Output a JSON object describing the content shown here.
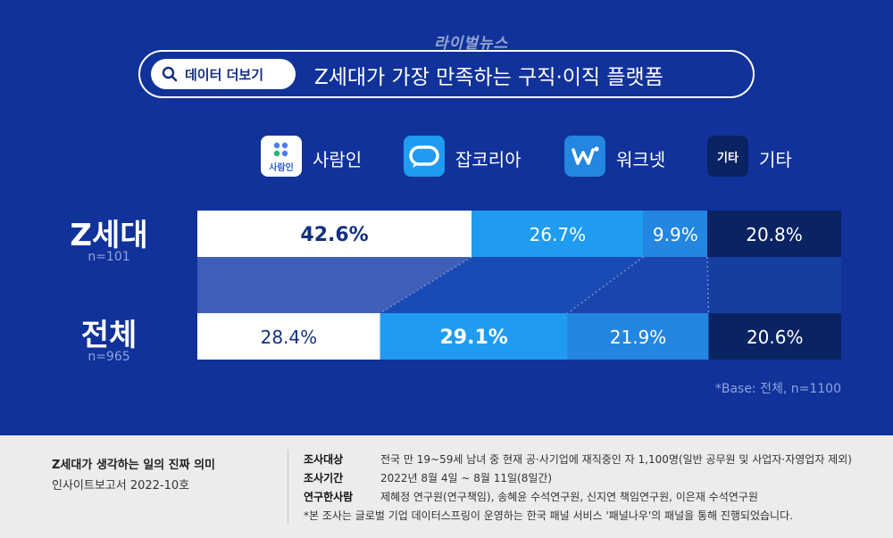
{
  "watermark": "라이벌뉴스",
  "header": {
    "badge_label": "데이터 더보기",
    "title": "Z세대가 가장 만족하는 구직·이직 플랫폼"
  },
  "legend": [
    {
      "label": "사람인",
      "icon_text": "사람인",
      "icon": "saramin-logo-icon",
      "color": "#ffffff"
    },
    {
      "label": "잡코리아",
      "icon": "jobkorea-logo-icon",
      "color": "#1f9bf0"
    },
    {
      "label": "워크넷",
      "icon": "worknet-logo-icon",
      "color": "#2386e0"
    },
    {
      "label": "기타",
      "icon_text": "기타",
      "icon": "other-icon",
      "color": "#0a2363"
    }
  ],
  "rows": [
    {
      "title": "Z세대",
      "n": "n=101"
    },
    {
      "title": "전체",
      "n": "n=965"
    }
  ],
  "chart_data": {
    "type": "bar",
    "orientation": "horizontal-stacked-100",
    "categories": [
      "Z세대",
      "전체"
    ],
    "series": [
      {
        "name": "사람인",
        "values": [
          42.6,
          28.4
        ],
        "labels": [
          "42.6%",
          "28.4%"
        ],
        "color": "#ffffff",
        "text_color": "#13307f"
      },
      {
        "name": "잡코리아",
        "values": [
          26.7,
          29.1
        ],
        "labels": [
          "26.7%",
          "29.1%"
        ],
        "color": "#1f9bf0",
        "text_color": "#ffffff"
      },
      {
        "name": "워크넷",
        "values": [
          9.9,
          21.9
        ],
        "labels": [
          "9.9%",
          "21.9%"
        ],
        "color": "#2386e0",
        "text_color": "#ffffff"
      },
      {
        "name": "기타",
        "values": [
          20.8,
          20.6
        ],
        "labels": [
          "20.8%",
          "20.6%"
        ],
        "color": "#0a2363",
        "text_color": "#ffffff"
      }
    ],
    "bold_labels": [
      [
        true,
        false,
        false,
        false
      ],
      [
        false,
        true,
        false,
        false
      ]
    ],
    "xlim": [
      0,
      100
    ]
  },
  "base_note": "*Base: 전체, n=1100",
  "footer": {
    "report_title": "Z세대가 생각하는 일의 진짜 의미",
    "report_sub": "인사이트보고서 2022-10호",
    "info": [
      {
        "key": "조사대상",
        "value": "전국 만 19~59세 남녀 중 현재 공·사기업에 재직중인 자 1,100명(일반 공무원 및 사업자·자영업자 제외)"
      },
      {
        "key": "조사기간",
        "value": "2022년 8월 4일 ~ 8월 11일(8일간)"
      },
      {
        "key": "연구한사람",
        "value": "제혜정 연구원(연구책임), 송혜윤 수석연구원, 신지연 책임연구원, 이은재 수석연구원"
      }
    ],
    "note": "*본 조사는 글로벌 기업 데이터스프링이 운영하는 한국 패널 서비스 '패널나우'의 패널을 통해 진행되었습니다."
  }
}
